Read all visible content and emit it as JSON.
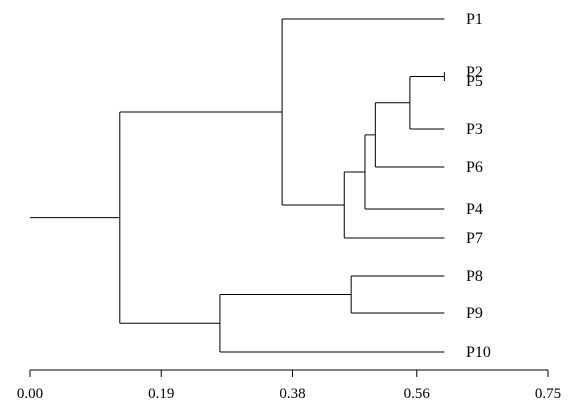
{
  "chart_data": {
    "type": "dendrogram",
    "orientation": "left-to-right",
    "xlim": [
      0.0,
      0.75
    ],
    "x_ticks": [
      "0.00",
      "0.19",
      "0.38",
      "0.56",
      "0.75"
    ],
    "x_tick_values": [
      0.0,
      0.19,
      0.38,
      0.56,
      0.75
    ],
    "leaves": [
      "P1",
      "P2",
      "P5",
      "P3",
      "P6",
      "P4",
      "P7",
      "P8",
      "P9",
      "P10"
    ],
    "leaf_end": 0.6,
    "root_start": 0.0,
    "merges": [
      {
        "children": [
          "P2",
          "P5"
        ],
        "height": 0.6
      },
      {
        "children": [
          "P2|P5",
          "P3"
        ],
        "height": 0.55
      },
      {
        "children": [
          "P2|P5|P3",
          "P6"
        ],
        "height": 0.5
      },
      {
        "children": [
          "P2|P5|P3|P6",
          "P4"
        ],
        "height": 0.485
      },
      {
        "children": [
          "P2|P5|P3|P6|P4",
          "P7"
        ],
        "height": 0.455
      },
      {
        "children": [
          "P1",
          "P2|P5|P3|P6|P4|P7"
        ],
        "height": 0.365
      },
      {
        "children": [
          "P8",
          "P9"
        ],
        "height": 0.465
      },
      {
        "children": [
          "P8|P9",
          "P10"
        ],
        "height": 0.275
      },
      {
        "children": [
          "P1|P2|P5|P3|P6|P4|P7",
          "P8|P9|P10"
        ],
        "height": 0.13
      }
    ]
  }
}
